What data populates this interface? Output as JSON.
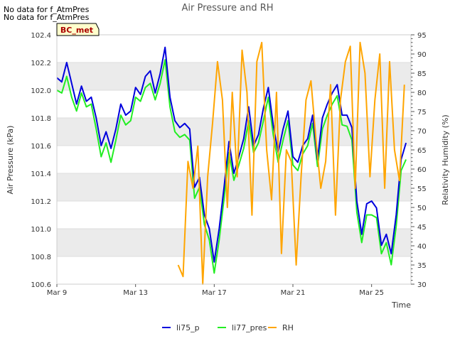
{
  "notes": [
    "No data for f_AtmPres",
    "No data for f_AtmPres"
  ],
  "badge": "BC_met",
  "chart_data": {
    "type": "line",
    "title": "Air Pressure and RH",
    "xlabel": "Time",
    "ylabel_left": "Air Pressure (kPa)",
    "ylabel_right": "Relativity Humidity (%)",
    "xlim": [
      "2023-03-09",
      "2023-03-27"
    ],
    "ylim_left": [
      100.6,
      102.4
    ],
    "ylim_right": [
      30,
      95
    ],
    "x_ticks": [
      "Mar 9",
      "Mar 13",
      "Mar 17",
      "Mar 21",
      "Mar 25"
    ],
    "x_tick_dates": [
      "2023-03-09",
      "2023-03-13",
      "2023-03-17",
      "2023-03-21",
      "2023-03-25"
    ],
    "y_ticks_left": [
      "100.6",
      "100.8",
      "101.0",
      "101.2",
      "101.4",
      "101.6",
      "101.8",
      "102.0",
      "102.2",
      "102.4"
    ],
    "y_ticks_right": [
      "30",
      "35",
      "40",
      "45",
      "50",
      "55",
      "60",
      "65",
      "70",
      "75",
      "80",
      "85",
      "90",
      "95"
    ],
    "grid": "horizontal bands",
    "legend_position": "bottom-center",
    "colors": {
      "li75_p": "#0000dd",
      "li77_pres": "#22ee22",
      "RH": "#ffa500",
      "band": "#ebebeb"
    },
    "series": [
      {
        "name": "li75_p",
        "axis": "left",
        "x": [
          "2023-03-09 00:00",
          "2023-03-09 06:00",
          "2023-03-09 12:00",
          "2023-03-09 18:00",
          "2023-03-10 00:00",
          "2023-03-10 06:00",
          "2023-03-10 12:00",
          "2023-03-10 18:00",
          "2023-03-11 00:00",
          "2023-03-11 06:00",
          "2023-03-11 12:00",
          "2023-03-11 18:00",
          "2023-03-12 00:00",
          "2023-03-12 06:00",
          "2023-03-12 12:00",
          "2023-03-12 18:00",
          "2023-03-13 00:00",
          "2023-03-13 06:00",
          "2023-03-13 12:00",
          "2023-03-13 18:00",
          "2023-03-14 00:00",
          "2023-03-14 06:00",
          "2023-03-14 12:00",
          "2023-03-14 18:00",
          "2023-03-15 00:00",
          "2023-03-15 06:00",
          "2023-03-15 12:00",
          "2023-03-15 18:00",
          "2023-03-16 00:00",
          "2023-03-16 06:00",
          "2023-03-16 12:00",
          "2023-03-16 18:00",
          "2023-03-17 00:00",
          "2023-03-17 06:00",
          "2023-03-17 12:00",
          "2023-03-17 18:00",
          "2023-03-18 00:00",
          "2023-03-18 06:00",
          "2023-03-18 12:00",
          "2023-03-18 18:00",
          "2023-03-19 00:00",
          "2023-03-19 06:00",
          "2023-03-19 12:00",
          "2023-03-19 18:00",
          "2023-03-20 00:00",
          "2023-03-20 06:00",
          "2023-03-20 12:00",
          "2023-03-20 18:00",
          "2023-03-21 00:00",
          "2023-03-21 06:00",
          "2023-03-21 12:00",
          "2023-03-21 18:00",
          "2023-03-22 00:00",
          "2023-03-22 06:00",
          "2023-03-22 12:00",
          "2023-03-22 18:00",
          "2023-03-23 00:00",
          "2023-03-23 06:00",
          "2023-03-23 12:00",
          "2023-03-23 18:00",
          "2023-03-24 00:00",
          "2023-03-24 06:00",
          "2023-03-24 12:00",
          "2023-03-24 18:00",
          "2023-03-25 00:00",
          "2023-03-25 06:00",
          "2023-03-25 12:00",
          "2023-03-25 18:00",
          "2023-03-26 00:00",
          "2023-03-26 06:00",
          "2023-03-26 12:00",
          "2023-03-26 18:00"
        ],
        "values": [
          102.09,
          102.06,
          102.2,
          102.05,
          101.9,
          102.03,
          101.92,
          101.95,
          101.8,
          101.6,
          101.7,
          101.58,
          101.72,
          101.9,
          101.82,
          101.85,
          102.02,
          101.97,
          102.1,
          102.14,
          101.98,
          102.12,
          102.31,
          101.95,
          101.78,
          101.73,
          101.76,
          101.72,
          101.3,
          101.37,
          101.1,
          101.0,
          100.76,
          101.0,
          101.3,
          101.63,
          101.4,
          101.52,
          101.65,
          101.88,
          101.6,
          101.68,
          101.87,
          102.02,
          101.75,
          101.55,
          101.72,
          101.85,
          101.52,
          101.48,
          101.6,
          101.65,
          101.82,
          101.5,
          101.8,
          101.9,
          101.98,
          102.04,
          101.82,
          101.82,
          101.73,
          101.2,
          100.96,
          101.18,
          101.2,
          101.15,
          100.88,
          100.96,
          100.82,
          101.1,
          101.5,
          101.62
        ]
      },
      {
        "name": "li77_pres",
        "axis": "left",
        "x": [
          "2023-03-09 00:00",
          "2023-03-09 06:00",
          "2023-03-09 12:00",
          "2023-03-09 18:00",
          "2023-03-10 00:00",
          "2023-03-10 06:00",
          "2023-03-10 12:00",
          "2023-03-10 18:00",
          "2023-03-11 00:00",
          "2023-03-11 06:00",
          "2023-03-11 12:00",
          "2023-03-11 18:00",
          "2023-03-12 00:00",
          "2023-03-12 06:00",
          "2023-03-12 12:00",
          "2023-03-12 18:00",
          "2023-03-13 00:00",
          "2023-03-13 06:00",
          "2023-03-13 12:00",
          "2023-03-13 18:00",
          "2023-03-14 00:00",
          "2023-03-14 06:00",
          "2023-03-14 12:00",
          "2023-03-14 18:00",
          "2023-03-15 00:00",
          "2023-03-15 06:00",
          "2023-03-15 12:00",
          "2023-03-15 18:00",
          "2023-03-16 00:00",
          "2023-03-16 06:00",
          "2023-03-16 12:00",
          "2023-03-16 18:00",
          "2023-03-17 00:00",
          "2023-03-17 06:00",
          "2023-03-17 12:00",
          "2023-03-17 18:00",
          "2023-03-18 00:00",
          "2023-03-18 06:00",
          "2023-03-18 12:00",
          "2023-03-18 18:00",
          "2023-03-19 00:00",
          "2023-03-19 06:00",
          "2023-03-19 12:00",
          "2023-03-19 18:00",
          "2023-03-20 00:00",
          "2023-03-20 06:00",
          "2023-03-20 12:00",
          "2023-03-20 18:00",
          "2023-03-21 00:00",
          "2023-03-21 06:00",
          "2023-03-21 12:00",
          "2023-03-21 18:00",
          "2023-03-22 00:00",
          "2023-03-22 06:00",
          "2023-03-22 12:00",
          "2023-03-22 18:00",
          "2023-03-23 00:00",
          "2023-03-23 06:00",
          "2023-03-23 12:00",
          "2023-03-23 18:00",
          "2023-03-24 00:00",
          "2023-03-24 06:00",
          "2023-03-24 12:00",
          "2023-03-24 18:00",
          "2023-03-25 00:00",
          "2023-03-25 06:00",
          "2023-03-25 12:00",
          "2023-03-25 18:00",
          "2023-03-26 00:00",
          "2023-03-26 06:00",
          "2023-03-26 12:00",
          "2023-03-26 18:00"
        ],
        "values": [
          102.0,
          101.98,
          102.1,
          101.95,
          101.85,
          101.98,
          101.88,
          101.9,
          101.72,
          101.52,
          101.62,
          101.48,
          101.64,
          101.82,
          101.75,
          101.78,
          101.95,
          101.92,
          102.02,
          102.05,
          101.93,
          102.05,
          102.22,
          101.88,
          101.7,
          101.66,
          101.68,
          101.64,
          101.22,
          101.3,
          101.03,
          100.92,
          100.68,
          100.92,
          101.22,
          101.55,
          101.35,
          101.46,
          101.58,
          101.78,
          101.55,
          101.62,
          101.78,
          101.95,
          101.68,
          101.48,
          101.64,
          101.78,
          101.46,
          101.42,
          101.54,
          101.6,
          101.76,
          101.45,
          101.72,
          101.82,
          101.9,
          101.96,
          101.75,
          101.74,
          101.64,
          101.12,
          100.9,
          101.1,
          101.1,
          101.08,
          100.82,
          100.9,
          100.74,
          101.02,
          101.42,
          101.5
        ]
      },
      {
        "name": "RH",
        "axis": "right",
        "x": [
          "2023-03-15 04:00",
          "2023-03-15 10:00",
          "2023-03-15 16:00",
          "2023-03-15 22:00",
          "2023-03-16 04:00",
          "2023-03-16 10:00",
          "2023-03-16 16:00",
          "2023-03-16 22:00",
          "2023-03-17 04:00",
          "2023-03-17 10:00",
          "2023-03-17 16:00",
          "2023-03-17 22:00",
          "2023-03-18 04:00",
          "2023-03-18 10:00",
          "2023-03-18 16:00",
          "2023-03-18 22:00",
          "2023-03-19 04:00",
          "2023-03-19 10:00",
          "2023-03-19 16:00",
          "2023-03-19 22:00",
          "2023-03-20 04:00",
          "2023-03-20 10:00",
          "2023-03-20 16:00",
          "2023-03-20 22:00",
          "2023-03-21 04:00",
          "2023-03-21 10:00",
          "2023-03-21 16:00",
          "2023-03-21 22:00",
          "2023-03-22 04:00",
          "2023-03-22 10:00",
          "2023-03-22 16:00",
          "2023-03-22 22:00",
          "2023-03-23 04:00",
          "2023-03-23 10:00",
          "2023-03-23 16:00",
          "2023-03-23 22:00",
          "2023-03-24 04:00",
          "2023-03-24 10:00",
          "2023-03-24 16:00",
          "2023-03-24 22:00",
          "2023-03-25 04:00",
          "2023-03-25 10:00",
          "2023-03-25 16:00",
          "2023-03-25 22:00",
          "2023-03-26 04:00",
          "2023-03-26 10:00",
          "2023-03-26 16:00"
        ],
        "values": [
          35,
          32,
          62,
          55,
          66,
          30,
          58,
          72,
          88,
          78,
          50,
          80,
          58,
          91,
          80,
          48,
          88,
          93,
          65,
          52,
          80,
          38,
          65,
          62,
          35,
          58,
          78,
          83,
          68,
          55,
          62,
          82,
          48,
          78,
          88,
          92,
          55,
          93,
          85,
          58,
          78,
          90,
          55,
          88,
          65,
          57,
          82
        ]
      }
    ]
  },
  "legend": [
    {
      "label": "li75_p",
      "color": "#0000dd"
    },
    {
      "label": "li77_pres",
      "color": "#22ee22"
    },
    {
      "label": "RH",
      "color": "#ffa500"
    }
  ]
}
